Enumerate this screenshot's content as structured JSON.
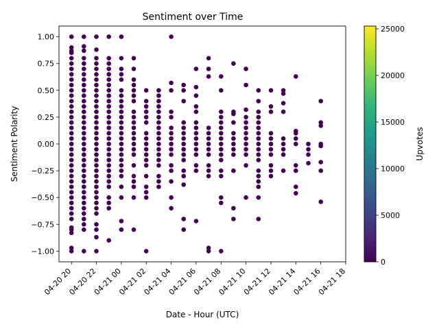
{
  "chart_data": {
    "type": "scatter",
    "title": "Sentiment over Time",
    "xlabel": "Date - Hour (UTC)",
    "ylabel": "Sentiment Polarity",
    "xlim": [
      "2020-04-20T19:00",
      "2020-04-21T18:00"
    ],
    "ylim": [
      -1.1,
      1.1
    ],
    "x_tick_labels": [
      "04-20 20",
      "04-20 22",
      "04-21 00",
      "04-21 02",
      "04-21 04",
      "04-21 06",
      "04-21 08",
      "04-21 10",
      "04-21 12",
      "04-21 14",
      "04-21 16",
      "04-21 18"
    ],
    "y_ticks": [
      1.0,
      0.75,
      0.5,
      0.25,
      0.0,
      -0.25,
      -0.5,
      -0.75,
      -1.0
    ],
    "y_tick_labels": [
      "1.00",
      "0.75",
      "0.50",
      "0.25",
      "0.00",
      "−0.25",
      "−0.50",
      "−0.75",
      "−1.00"
    ],
    "grid": false,
    "point_color": "#440154",
    "colorbar": {
      "label": "Upvotes",
      "range": [
        0,
        25300
      ],
      "ticks": [
        0,
        5000,
        10000,
        15000,
        20000,
        25000
      ],
      "tick_labels": [
        "0",
        "5000",
        "10000",
        "15000",
        "20000",
        "25000"
      ],
      "colormap": "viridis",
      "colors": [
        "#440154",
        "#482878",
        "#3e4989",
        "#31688e",
        "#26828e",
        "#1f9e89",
        "#35b779",
        "#6ece58",
        "#b5de2b",
        "#fde725"
      ]
    },
    "series": [
      {
        "x": "2020-04-20T20:00",
        "y": [
          1.0,
          0.9,
          0.87,
          0.85,
          0.8,
          0.75,
          0.7,
          0.65,
          0.6,
          0.55,
          0.5,
          0.45,
          0.4,
          0.35,
          0.3,
          0.25,
          0.2,
          0.15,
          0.1,
          0.05,
          0.0,
          -0.05,
          -0.1,
          -0.15,
          -0.2,
          -0.25,
          -0.3,
          -0.35,
          -0.4,
          -0.45,
          -0.5,
          -0.55,
          -0.6,
          -0.65,
          -0.7,
          -0.78,
          -0.8,
          -0.83,
          -0.97,
          -1.0
        ]
      },
      {
        "x": "2020-04-20T21:00",
        "y": [
          1.0,
          0.91,
          0.87,
          0.8,
          0.75,
          0.7,
          0.65,
          0.6,
          0.55,
          0.5,
          0.45,
          0.4,
          0.35,
          0.3,
          0.25,
          0.2,
          0.15,
          0.1,
          0.05,
          0.0,
          -0.05,
          -0.1,
          -0.15,
          -0.2,
          -0.25,
          -0.3,
          -0.35,
          -0.4,
          -0.45,
          -0.5,
          -0.55,
          -0.6,
          -0.65,
          -0.7,
          -0.75,
          -0.8,
          -1.0
        ]
      },
      {
        "x": "2020-04-20T22:00",
        "y": [
          1.0,
          0.88,
          0.8,
          0.75,
          0.7,
          0.65,
          0.6,
          0.55,
          0.5,
          0.45,
          0.4,
          0.35,
          0.3,
          0.25,
          0.2,
          0.15,
          0.1,
          0.05,
          0.0,
          -0.05,
          -0.1,
          -0.15,
          -0.2,
          -0.25,
          -0.3,
          -0.35,
          -0.4,
          -0.45,
          -0.5,
          -0.55,
          -0.6,
          -0.65,
          -0.75,
          -0.8,
          -0.87,
          -1.0
        ]
      },
      {
        "x": "2020-04-20T23:00",
        "y": [
          1.0,
          0.8,
          0.75,
          0.7,
          0.65,
          0.6,
          0.55,
          0.5,
          0.45,
          0.4,
          0.35,
          0.3,
          0.25,
          0.2,
          0.15,
          0.1,
          0.05,
          0.0,
          -0.05,
          -0.1,
          -0.15,
          -0.2,
          -0.25,
          -0.3,
          -0.35,
          -0.4,
          -0.5,
          -0.55,
          -0.6,
          -0.9
        ]
      },
      {
        "x": "2020-04-21T00:00",
        "y": [
          1.0,
          0.8,
          0.7,
          0.65,
          0.6,
          0.5,
          0.45,
          0.4,
          0.35,
          0.3,
          0.25,
          0.2,
          0.15,
          0.1,
          0.05,
          0.0,
          -0.05,
          -0.1,
          -0.15,
          -0.2,
          -0.25,
          -0.3,
          -0.4,
          -0.5,
          -0.72,
          -0.8
        ]
      },
      {
        "x": "2020-04-21T01:00",
        "y": [
          0.8,
          0.7,
          0.6,
          0.55,
          0.5,
          0.45,
          0.4,
          0.3,
          0.25,
          0.2,
          0.15,
          0.1,
          0.05,
          0.0,
          -0.05,
          -0.1,
          -0.2,
          -0.3,
          -0.35,
          -0.4,
          -0.5,
          -0.8
        ]
      },
      {
        "x": "2020-04-21T02:00",
        "y": [
          0.5,
          0.4,
          0.35,
          0.3,
          0.25,
          0.2,
          0.1,
          0.05,
          0.0,
          -0.05,
          -0.1,
          -0.15,
          -0.2,
          -0.3,
          -0.4,
          -0.45,
          -0.5,
          -1.0
        ]
      },
      {
        "x": "2020-04-21T03:00",
        "y": [
          0.5,
          0.45,
          0.4,
          0.35,
          0.3,
          0.25,
          0.2,
          0.15,
          0.1,
          0.05,
          0.0,
          -0.05,
          -0.1,
          -0.15,
          -0.2,
          -0.3,
          -0.35,
          -0.4
        ]
      },
      {
        "x": "2020-04-21T04:00",
        "y": [
          1.0,
          0.57,
          0.5,
          0.3,
          0.25,
          0.15,
          0.1,
          0.05,
          0.0,
          -0.05,
          -0.1,
          -0.2,
          -0.25,
          -0.35,
          -0.5,
          -0.6
        ]
      },
      {
        "x": "2020-04-21T05:00",
        "y": [
          0.55,
          0.5,
          0.4,
          0.2,
          0.15,
          0.1,
          0.05,
          0.0,
          -0.05,
          -0.1,
          -0.15,
          -0.25,
          -0.3,
          -0.38,
          -0.7,
          -0.8
        ]
      },
      {
        "x": "2020-04-21T06:00",
        "y": [
          0.7,
          0.53,
          0.45,
          0.35,
          0.3,
          0.2,
          0.15,
          0.1,
          0.05,
          0.0,
          -0.05,
          -0.1,
          -0.2,
          -0.25,
          -0.72
        ]
      },
      {
        "x": "2020-04-21T07:00",
        "y": [
          0.8,
          0.7,
          0.63,
          0.15,
          0.1,
          0.05,
          0.0,
          -0.05,
          -0.1,
          -0.2,
          -0.25,
          -0.3,
          -0.97,
          -1.0
        ]
      },
      {
        "x": "2020-04-21T08:00",
        "y": [
          0.63,
          0.5,
          0.3,
          0.25,
          0.2,
          0.15,
          0.1,
          0.05,
          0.0,
          -0.05,
          -0.1,
          -0.15,
          -0.25,
          -0.3,
          -0.5,
          -0.55,
          -1.0
        ]
      },
      {
        "x": "2020-04-21T09:00",
        "y": [
          0.75,
          0.3,
          0.28,
          0.2,
          0.1,
          0.05,
          0.0,
          -0.05,
          -0.1,
          -0.25,
          -0.6,
          -0.7
        ]
      },
      {
        "x": "2020-04-21T10:00",
        "y": [
          0.7,
          0.55,
          0.32,
          0.25,
          0.2,
          0.15,
          0.1,
          0.05,
          0.0,
          -0.05,
          -0.1,
          -0.2,
          -0.5
        ]
      },
      {
        "x": "2020-04-21T11:00",
        "y": [
          0.5,
          0.4,
          0.3,
          0.25,
          0.2,
          0.15,
          0.1,
          0.05,
          0.0,
          -0.05,
          -0.1,
          -0.15,
          -0.25,
          -0.3,
          -0.35,
          -0.4,
          -0.5,
          -0.7
        ]
      },
      {
        "x": "2020-04-21T12:00",
        "y": [
          0.5,
          0.35,
          0.3,
          0.1,
          0.05,
          0.0,
          -0.05,
          -0.1,
          -0.2,
          -0.25,
          -0.3
        ]
      },
      {
        "x": "2020-04-21T13:00",
        "y": [
          0.5,
          0.47,
          0.38,
          0.3,
          0.05,
          0.0,
          -0.05,
          -0.1,
          -0.25
        ]
      },
      {
        "x": "2020-04-21T14:00",
        "y": [
          0.63,
          0.12,
          0.1,
          0.05,
          0.0,
          -0.2,
          -0.25,
          -0.4,
          -0.46
        ]
      },
      {
        "x": "2020-04-21T15:00",
        "y": [
          0.0,
          -0.05,
          -0.1,
          -0.18
        ]
      },
      {
        "x": "2020-04-21T16:00",
        "y": [
          0.4,
          0.2,
          0.17,
          0.0,
          -0.02,
          -0.17,
          -0.25,
          -0.54
        ]
      }
    ]
  }
}
